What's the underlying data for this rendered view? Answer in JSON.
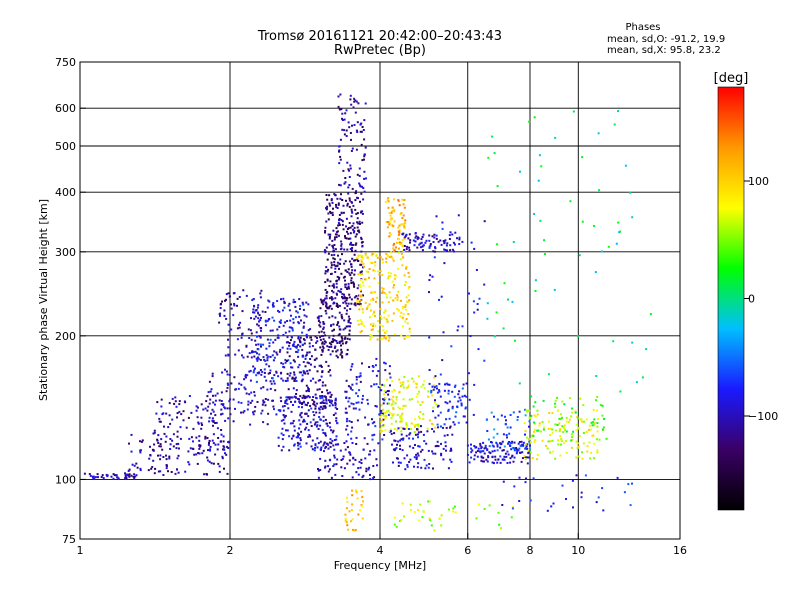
{
  "chart_data": {
    "type": "scatter",
    "title": "Tromsø 20161121 20:42:00–20:43:43",
    "subtitle": "RwPretec (Bp)",
    "xlabel": "Frequency [MHz]",
    "ylabel": "Stationary phase Virtual Height [km]",
    "xscale": "log",
    "yscale": "log",
    "xlim": [
      1,
      16
    ],
    "ylim": [
      75,
      750
    ],
    "x_ticks": [
      1,
      2,
      4,
      6,
      8,
      10,
      16
    ],
    "y_ticks": [
      75,
      100,
      200,
      300,
      400,
      500,
      600,
      750
    ],
    "x_grid": [
      1,
      2,
      4,
      6,
      8,
      10
    ],
    "y_grid": [
      100,
      200,
      300,
      400,
      500,
      600
    ],
    "grid": true,
    "stats": {
      "title": "Phases",
      "line_o": "mean, sd,O: -91.2, 19.9",
      "line_x": "mean, sd,X:  95.8, 23.2"
    },
    "colorbar": {
      "label": "[deg]",
      "range": [
        -180,
        180
      ],
      "ticks": [
        {
          "value": 100,
          "label": "100"
        },
        {
          "value": 0,
          "label": "0"
        },
        {
          "value": -100,
          "label": "−100"
        }
      ],
      "colors": [
        "#000000",
        "#3a0066",
        "#1a1aff",
        "#00bfff",
        "#00ff00",
        "#ffff00",
        "#ff9900",
        "#ff0000"
      ]
    },
    "clusters": [
      {
        "x": [
          1.0,
          1.3
        ],
        "y": [
          100,
          103
        ],
        "phase": -105,
        "n": 45
      },
      {
        "x": [
          1.25,
          2.0
        ],
        "y": [
          102,
          125
        ],
        "phase": -110,
        "n": 120
      },
      {
        "x": [
          1.4,
          2.0
        ],
        "y": [
          115,
          150
        ],
        "phase": -105,
        "n": 110
      },
      {
        "x": [
          1.8,
          2.5
        ],
        "y": [
          130,
          170
        ],
        "phase": -100,
        "n": 110
      },
      {
        "x": [
          1.9,
          2.4
        ],
        "y": [
          180,
          250
        ],
        "phase": -105,
        "n": 90
      },
      {
        "x": [
          2.2,
          2.9
        ],
        "y": [
          160,
          240
        ],
        "phase": -85,
        "n": 220
      },
      {
        "x": [
          2.5,
          3.3
        ],
        "y": [
          115,
          150
        ],
        "phase": -95,
        "n": 220
      },
      {
        "x": [
          2.6,
          3.2
        ],
        "y": [
          140,
          200
        ],
        "phase": -115,
        "n": 130
      },
      {
        "x": [
          3.0,
          3.5
        ],
        "y": [
          180,
          240
        ],
        "phase": -125,
        "n": 140
      },
      {
        "x": [
          3.1,
          3.7
        ],
        "y": [
          230,
          400
        ],
        "phase": -120,
        "n": 320
      },
      {
        "x": [
          3.3,
          3.75
        ],
        "y": [
          400,
          650
        ],
        "phase": -110,
        "n": 90
      },
      {
        "x": [
          3.0,
          4.0
        ],
        "y": [
          100,
          120
        ],
        "phase": -105,
        "n": 80
      },
      {
        "x": [
          3.4,
          4.2
        ],
        "y": [
          120,
          180
        ],
        "phase": -90,
        "n": 110
      },
      {
        "x": [
          3.6,
          4.6
        ],
        "y": [
          195,
          300
        ],
        "phase": 95,
        "n": 220
      },
      {
        "x": [
          4.1,
          4.5
        ],
        "y": [
          300,
          390
        ],
        "phase": 115,
        "n": 80
      },
      {
        "x": [
          4.4,
          5.8
        ],
        "y": [
          300,
          330
        ],
        "phase": -100,
        "n": 80
      },
      {
        "x": [
          4.0,
          5.2
        ],
        "y": [
          125,
          165
        ],
        "phase": 80,
        "n": 140
      },
      {
        "x": [
          4.2,
          5.6
        ],
        "y": [
          105,
          130
        ],
        "phase": -95,
        "n": 110
      },
      {
        "x": [
          5.0,
          6.2
        ],
        "y": [
          130,
          160
        ],
        "phase": -80,
        "n": 70
      },
      {
        "x": [
          6.0,
          8.0
        ],
        "y": [
          108,
          120
        ],
        "phase": -95,
        "n": 120
      },
      {
        "x": [
          6.5,
          8.0
        ],
        "y": [
          115,
          140
        ],
        "phase": -60,
        "n": 50
      },
      {
        "x": [
          7.8,
          11.0
        ],
        "y": [
          110,
          140
        ],
        "phase": 75,
        "n": 120
      },
      {
        "x": [
          8.0,
          11.5
        ],
        "y": [
          120,
          150
        ],
        "phase": 40,
        "n": 60
      },
      {
        "x": [
          3.4,
          3.7
        ],
        "y": [
          78,
          95
        ],
        "phase": 110,
        "n": 30
      },
      {
        "x": [
          4.0,
          7.5
        ],
        "y": [
          78,
          90
        ],
        "phase": 60,
        "n": 40
      },
      {
        "x": [
          5.0,
          6.5
        ],
        "y": [
          160,
          380
        ],
        "phase": -90,
        "n": 40
      },
      {
        "x": [
          6.5,
          14.0
        ],
        "y": [
          150,
          600
        ],
        "phase": 0,
        "n": 60
      },
      {
        "x": [
          7.0,
          13.0
        ],
        "y": [
          85,
          105
        ],
        "phase": -80,
        "n": 30
      }
    ]
  }
}
